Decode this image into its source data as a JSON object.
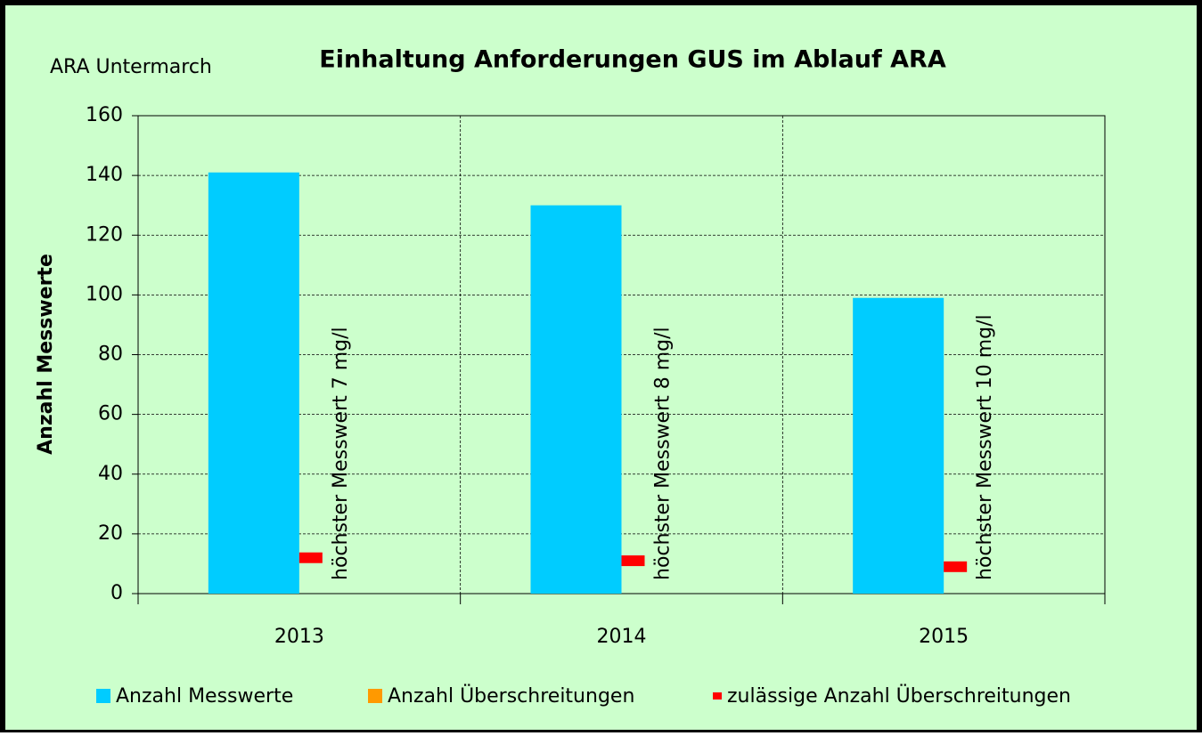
{
  "chart_data": {
    "type": "bar",
    "title": "Einhaltung Anforderungen GUS im Ablauf ARA",
    "subtitle": "ARA Untermarch",
    "y_label": "Anzahl Messwerte",
    "categories": [
      "2013",
      "2014",
      "2015"
    ],
    "series": [
      {
        "name": "Anzahl Messwerte",
        "color": "#00ccff",
        "type": "bar",
        "values": [
          141,
          130,
          99
        ]
      },
      {
        "name": "Anzahl Überschreitungen",
        "color": "#ff9900",
        "type": "bar",
        "values": [
          0,
          0,
          0
        ]
      },
      {
        "name": "zulässige Anzahl Überschreitungen",
        "color": "#ff0000",
        "type": "marker",
        "values": [
          12,
          11,
          9
        ]
      }
    ],
    "annotations": [
      "höchster Messwert 7 mg/l",
      "höchster Messwert 8 mg/l",
      "höchster Messwert  10 mg/l"
    ],
    "ylim": [
      0,
      160
    ],
    "yticks": [
      0,
      20,
      40,
      60,
      80,
      100,
      120,
      140,
      160
    ],
    "grid": true,
    "background": "#ccffcc"
  }
}
